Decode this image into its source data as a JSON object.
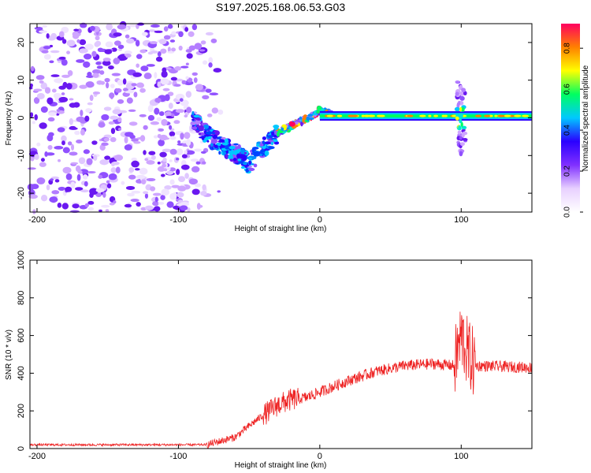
{
  "figure_title": "S197.2025.168.06.53.G03",
  "chart_data": [
    {
      "type": "heatmap",
      "xlabel": "Height of straight line (km)",
      "ylabel": "Frequency (Hz)",
      "xlim": [
        -205,
        150
      ],
      "ylim": [
        -25,
        25
      ],
      "xticks": [
        -200,
        -100,
        0,
        100
      ],
      "yticks": [
        -20,
        -10,
        0,
        10,
        20
      ],
      "colorbar": {
        "label": "Normalized spectral amplitude",
        "range": [
          0,
          0.92
        ],
        "ticks": [
          "0.0",
          "0.2",
          "0.4",
          "0.6",
          "0.8"
        ],
        "colors": [
          "#ffffff",
          "#e8d0ff",
          "#8030ff",
          "#2a00ff",
          "#00c8ff",
          "#00ff60",
          "#ffff00",
          "#ff8000",
          "#ff0060"
        ]
      },
      "features": {
        "noise_region_x": [
          -205,
          -70
        ],
        "descending_arc_points": [
          [
            -90,
            -1
          ],
          [
            -75,
            -6
          ],
          [
            -60,
            -9
          ],
          [
            -50,
            -12
          ],
          [
            -40,
            -8
          ],
          [
            -30,
            -4
          ],
          [
            -20,
            -2
          ],
          [
            -10,
            -0.5
          ],
          [
            0,
            2
          ],
          [
            8,
            1
          ]
        ],
        "carrier_line": {
          "x_start": 0,
          "x_end": 150,
          "freq": 0.5
        },
        "burst_x": 100
      }
    },
    {
      "type": "line",
      "xlabel": "Height of straight line (km)",
      "ylabel": "SNR (10 * v/v)",
      "xlim": [
        -205,
        150
      ],
      "ylim": [
        0,
        1000
      ],
      "xticks": [
        -200,
        -100,
        0,
        100
      ],
      "yticks": [
        0,
        200,
        400,
        600,
        800,
        1000
      ],
      "color": "#ee2222",
      "trend": [
        [
          -205,
          20
        ],
        [
          -80,
          20
        ],
        [
          -60,
          60
        ],
        [
          -45,
          150
        ],
        [
          -30,
          230
        ],
        [
          -20,
          260
        ],
        [
          -10,
          270
        ],
        [
          0,
          300
        ],
        [
          20,
          360
        ],
        [
          40,
          410
        ],
        [
          60,
          440
        ],
        [
          80,
          450
        ],
        [
          95,
          440
        ],
        [
          100,
          600
        ],
        [
          105,
          500
        ],
        [
          110,
          440
        ],
        [
          130,
          435
        ],
        [
          150,
          430
        ]
      ]
    }
  ]
}
